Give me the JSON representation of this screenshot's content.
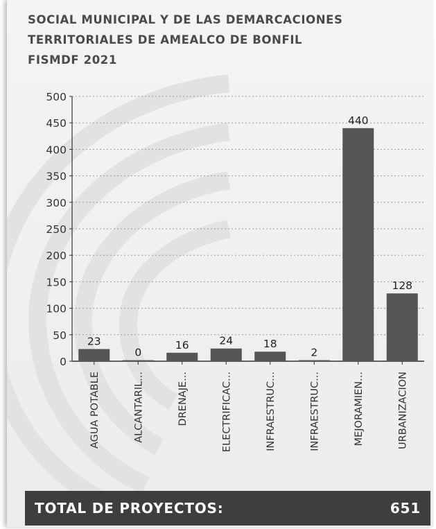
{
  "header": {
    "title_lines": [
      "SOCIAL MUNICIPAL Y DE LAS DEMARCACIONES",
      "TERRITORIALES DE AMEALCO DE BONFIL",
      "FISMDF 2021"
    ]
  },
  "chart_data": {
    "type": "bar",
    "categories": [
      "AGUA POTABLE",
      "ALCANTARIL...",
      "DRENAJE...",
      "ELECTRIFICAC...",
      "INFRAESTRUC...",
      "INFRAESTRUC...",
      "MEJORAMIEN...",
      "URBANIZACION"
    ],
    "values": [
      23,
      0,
      16,
      24,
      18,
      2,
      440,
      128
    ],
    "data_labels": [
      "23",
      "0",
      "16",
      "24",
      "18",
      "2",
      "440",
      "128"
    ],
    "yticks": [
      "0",
      "50",
      "100",
      "150",
      "200",
      "250",
      "300",
      "350",
      "400",
      "450",
      "500"
    ],
    "ylim": [
      0,
      500
    ],
    "grid": true,
    "bar_color": "#555555"
  },
  "footer": {
    "label": "TOTAL DE PROYECTOS:",
    "value": "651"
  }
}
